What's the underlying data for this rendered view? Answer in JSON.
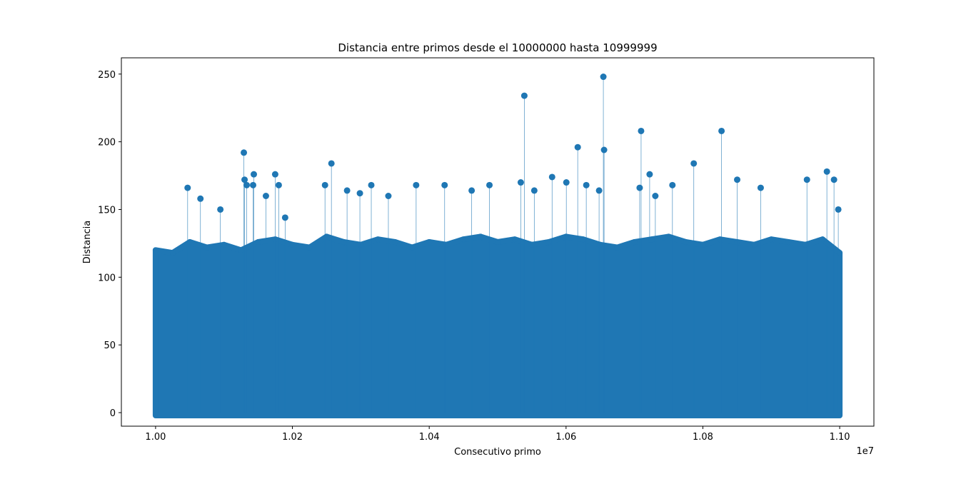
{
  "chart_data": {
    "type": "stem",
    "title": "Distancia entre primos desde el 10000000 hasta 10999999",
    "xlabel": "Consecutivo primo",
    "ylabel": "Distancia",
    "x_offset_label": "1e7",
    "xlim": [
      9950000,
      11050000
    ],
    "ylim": [
      -10,
      262
    ],
    "xticks": [
      {
        "value": 10000000,
        "label": "1.00"
      },
      {
        "value": 10200000,
        "label": "1.02"
      },
      {
        "value": 10400000,
        "label": "1.04"
      },
      {
        "value": 10600000,
        "label": "1.06"
      },
      {
        "value": 10800000,
        "label": "1.08"
      },
      {
        "value": 11000000,
        "label": "1.10"
      }
    ],
    "yticks": [
      0,
      50,
      100,
      150,
      200,
      250
    ],
    "color": "#1f77b4",
    "series": [
      {
        "x": [
          10000000,
          10025000,
          10050000,
          10075000,
          10100000,
          10125000,
          10150000,
          10175000,
          10200000,
          10225000,
          10250000,
          10275000,
          10300000,
          10325000,
          10350000,
          10375000,
          10400000,
          10425000,
          10450000,
          10475000,
          10500000,
          10525000,
          10550000,
          10575000,
          10600000,
          10625000,
          10650000,
          10675000,
          10700000,
          10725000,
          10750000,
          10775000,
          10800000,
          10825000,
          10850000,
          10875000,
          10900000,
          10925000,
          10950000,
          10975000,
          11000000
        ],
        "values": [
          120,
          118,
          126,
          122,
          124,
          120,
          126,
          128,
          124,
          122,
          130,
          126,
          124,
          128,
          126,
          122,
          126,
          124,
          128,
          130,
          126,
          128,
          124,
          126,
          130,
          128,
          124,
          122,
          126,
          128,
          130,
          126,
          124,
          128,
          126,
          124,
          128,
          126,
          124,
          128,
          118
        ]
      },
      {
        "x": [
          10046830,
          10065560,
          10094700,
          10129030,
          10130080,
          10143600,
          10133200,
          10142560,
          10174820,
          10180020,
          10161290,
          10189390,
          10257030,
          10247660,
          10279920,
          10298650,
          10315300,
          10340280,
          10380860,
          10422490,
          10462030,
          10488040,
          10533830,
          10539030,
          10553600,
          10579620,
          10600430,
          10617080,
          10629570,
          10648300,
          10654540,
          10655590,
          10709700,
          10722190,
          10730510,
          10707620,
          10755480,
          10786700,
          10827280,
          10850170,
          10884510,
          10952150,
          10981290,
          10991700,
          10997940
        ],
        "values": [
          166,
          158,
          150,
          192,
          172,
          176,
          168,
          168,
          176,
          168,
          160,
          144,
          184,
          168,
          164,
          162,
          168,
          160,
          168,
          168,
          164,
          168,
          170,
          234,
          164,
          174,
          170,
          196,
          168,
          164,
          248,
          194,
          208,
          176,
          160,
          166,
          168,
          184,
          208,
          172,
          166,
          172,
          178,
          172,
          150
        ]
      }
    ]
  }
}
